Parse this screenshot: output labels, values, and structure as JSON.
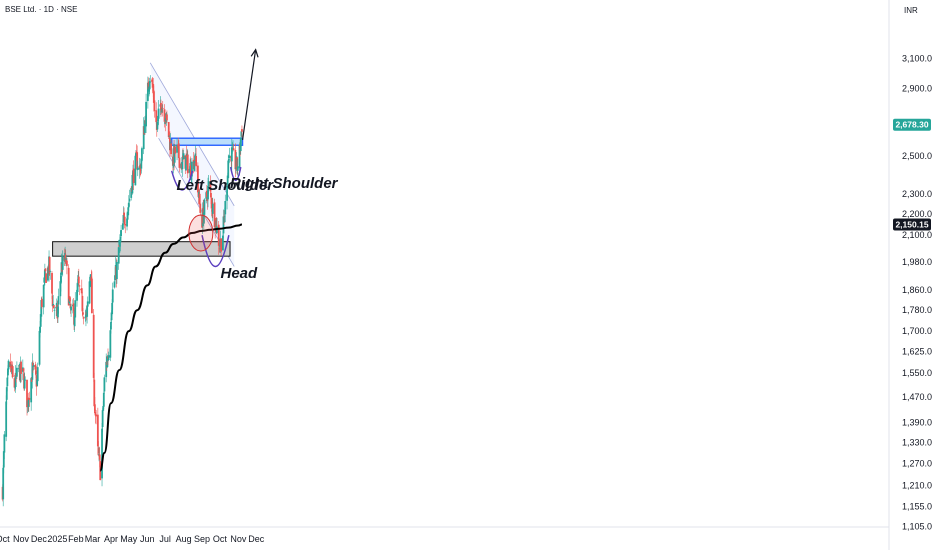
{
  "header": {
    "title": "BSE Ltd. · 1D · NSE",
    "currency": "INR"
  },
  "colors": {
    "up": "#26a69a",
    "down": "#ef5350",
    "ma": "#000000",
    "neckline": "#2962ff",
    "cup": "#5b3fbf",
    "price_tag": "#26a69a",
    "ma_tag": "#131722"
  },
  "chart_data": {
    "type": "candlestick",
    "title": "BSE Ltd. · 1D · NSE",
    "y_scale": "log",
    "ylim": [
      1080,
      3350
    ],
    "x_ticks": [
      "Oct",
      "Nov",
      "Dec",
      "2025",
      "Feb",
      "Mar",
      "Apr",
      "May",
      "Jun",
      "Jul",
      "Aug",
      "Sep",
      "Oct",
      "Nov",
      "Dec"
    ],
    "y_ticks": [
      "3,100.00",
      "2,900.00",
      "2,500.00",
      "2,300.00",
      "2,200.00",
      "2,100.00",
      "1,980.00",
      "1,860.00",
      "1,780.00",
      "1,700.00",
      "1,625.00",
      "1,550.00",
      "1,470.00",
      "1,390.00",
      "1,330.00",
      "1,270.00",
      "1,210.00",
      "1,155.00",
      "1,105.00"
    ],
    "y_tick_values": [
      3100,
      2900,
      2500,
      2300,
      2200,
      2100,
      1980,
      1860,
      1780,
      1700,
      1625,
      1550,
      1470,
      1390,
      1330,
      1270,
      1210,
      1155,
      1105
    ],
    "price_anchors": [
      [
        "2024-10-01",
        1200
      ],
      [
        "2024-10-05",
        1380
      ],
      [
        "2024-10-12",
        1600
      ],
      [
        "2024-10-20",
        1500
      ],
      [
        "2024-10-28",
        1560
      ],
      [
        "2024-11-05",
        1540
      ],
      [
        "2024-11-12",
        1450
      ],
      [
        "2024-11-20",
        1560
      ],
      [
        "2024-11-28",
        1520
      ],
      [
        "2024-12-05",
        1800
      ],
      [
        "2024-12-12",
        1920
      ],
      [
        "2024-12-18",
        1960
      ],
      [
        "2024-12-25",
        1800
      ],
      [
        "2025-01-01",
        1760
      ],
      [
        "2025-01-08",
        1960
      ],
      [
        "2025-01-15",
        1990
      ],
      [
        "2025-01-22",
        1780
      ],
      [
        "2025-01-29",
        1760
      ],
      [
        "2025-02-05",
        1880
      ],
      [
        "2025-02-12",
        1800
      ],
      [
        "2025-02-19",
        1740
      ],
      [
        "2025-02-26",
        1960
      ],
      [
        "2025-03-03",
        1500
      ],
      [
        "2025-03-10",
        1300
      ],
      [
        "2025-03-14",
        1250
      ],
      [
        "2025-03-22",
        1560
      ],
      [
        "2025-03-28",
        1620
      ],
      [
        "2025-04-03",
        1840
      ],
      [
        "2025-04-10",
        1940
      ],
      [
        "2025-04-15",
        2040
      ],
      [
        "2025-04-22",
        2160
      ],
      [
        "2025-04-30",
        2240
      ],
      [
        "2025-05-07",
        2380
      ],
      [
        "2025-05-14",
        2480
      ],
      [
        "2025-05-20",
        2420
      ],
      [
        "2025-05-28",
        2700
      ],
      [
        "2025-06-05",
        3000
      ],
      [
        "2025-06-10",
        2900
      ],
      [
        "2025-06-17",
        2650
      ],
      [
        "2025-06-24",
        2820
      ],
      [
        "2025-07-01",
        2740
      ],
      [
        "2025-07-08",
        2600
      ],
      [
        "2025-07-14",
        2480
      ],
      [
        "2025-07-20",
        2540
      ],
      [
        "2025-07-28",
        2460
      ],
      [
        "2025-08-05",
        2480
      ],
      [
        "2025-08-12",
        2420
      ],
      [
        "2025-08-20",
        2500
      ],
      [
        "2025-08-26",
        2300
      ],
      [
        "2025-08-31",
        2160
      ],
      [
        "2025-09-06",
        2240
      ],
      [
        "2025-09-12",
        2340
      ],
      [
        "2025-09-18",
        2240
      ],
      [
        "2025-09-24",
        2160
      ],
      [
        "2025-09-30",
        2060
      ],
      [
        "2025-10-05",
        2080
      ],
      [
        "2025-10-10",
        2240
      ],
      [
        "2025-10-15",
        2480
      ],
      [
        "2025-10-20",
        2520
      ],
      [
        "2025-10-25",
        2470
      ],
      [
        "2025-10-30",
        2440
      ],
      [
        "2025-11-03",
        2520
      ],
      [
        "2025-11-07",
        2680
      ]
    ],
    "moving_average": [
      [
        "2025-03-14",
        1250
      ],
      [
        "2025-03-21",
        1300
      ],
      [
        "2025-04-01",
        1450
      ],
      [
        "2025-04-15",
        1560
      ],
      [
        "2025-05-01",
        1700
      ],
      [
        "2025-05-15",
        1780
      ],
      [
        "2025-06-01",
        1880
      ],
      [
        "2025-06-15",
        1960
      ],
      [
        "2025-07-01",
        2020
      ],
      [
        "2025-07-15",
        2060
      ],
      [
        "2025-08-01",
        2090
      ],
      [
        "2025-08-15",
        2110
      ],
      [
        "2025-09-01",
        2120
      ],
      [
        "2025-09-15",
        2125
      ],
      [
        "2025-10-01",
        2130
      ],
      [
        "2025-10-15",
        2135
      ],
      [
        "2025-11-01",
        2145
      ],
      [
        "2025-11-07",
        2150
      ]
    ],
    "last_price": {
      "value": 2678.3,
      "label": "2,678.30"
    },
    "ma_value": {
      "value": 2150.15,
      "label": "2,150.15"
    },
    "support_zone": {
      "from_date": "2024-12-24",
      "to_date": "2025-10-18",
      "low": 2005,
      "high": 2070
    },
    "neckline": {
      "from_date": "2025-07-12",
      "to_date": "2025-11-08",
      "low": 2560,
      "high": 2600
    },
    "channel": [
      {
        "from": [
          "2025-06-06",
          3070
        ],
        "to": [
          "2025-10-25",
          2240
        ]
      },
      {
        "from": [
          "2025-06-20",
          2600
        ],
        "to": [
          "2025-10-25",
          1960
        ]
      }
    ],
    "target_arrow": {
      "from": [
        "2025-11-08",
        2590
      ],
      "to": [
        "2025-11-30",
        3160
      ]
    },
    "annotations": [
      {
        "text": "Left Shoulder",
        "date": "2025-07-20",
        "price": 2320
      },
      {
        "text": "Head",
        "date": "2025-10-02",
        "price": 1910
      },
      {
        "text": "Right Shoulder",
        "date": "2025-10-18",
        "price": 2330
      }
    ],
    "cups": [
      {
        "from": [
          "2025-07-12",
          2420
        ],
        "to": [
          "2025-08-16",
          2420
        ],
        "bottom": 2320
      },
      {
        "from": [
          "2025-09-01",
          2100
        ],
        "to": [
          "2025-10-16",
          2100
        ],
        "bottom": 1960
      },
      {
        "from": [
          "2025-10-19",
          2440
        ],
        "to": [
          "2025-11-05",
          2440
        ],
        "bottom": 2370
      }
    ],
    "circle_marker": {
      "date": "2025-08-30",
      "price": 2110
    }
  }
}
